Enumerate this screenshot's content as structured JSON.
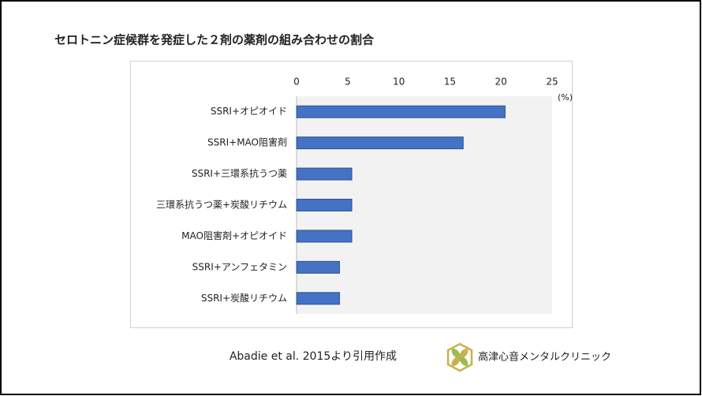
{
  "chart_data": {
    "type": "bar",
    "orientation": "horizontal",
    "title": "セロトニン症候群を発症した２剤の薬剤の組み合わせの割合",
    "categories": [
      "SSRI+オピオイド",
      "SSRI+MAO阻害剤",
      "SSRI+三環系抗うつ薬",
      "三環系抗うつ薬+炭酸リチウム",
      "MAO阻害剤+オピオイド",
      "SSRI+アンフェタミン",
      "SSRI+炭酸リチウム"
    ],
    "values": [
      20.4,
      16.3,
      5.4,
      5.4,
      5.4,
      4.2,
      4.2
    ],
    "color": "#4472c4",
    "xlabel": "(%)",
    "xlim": [
      0,
      25
    ],
    "xticks": [
      0,
      5,
      10,
      15,
      20,
      25
    ],
    "grid": false
  },
  "source": "Abadie et al. 2015より引用作成",
  "brand": "高津心音メンタルクリニック"
}
